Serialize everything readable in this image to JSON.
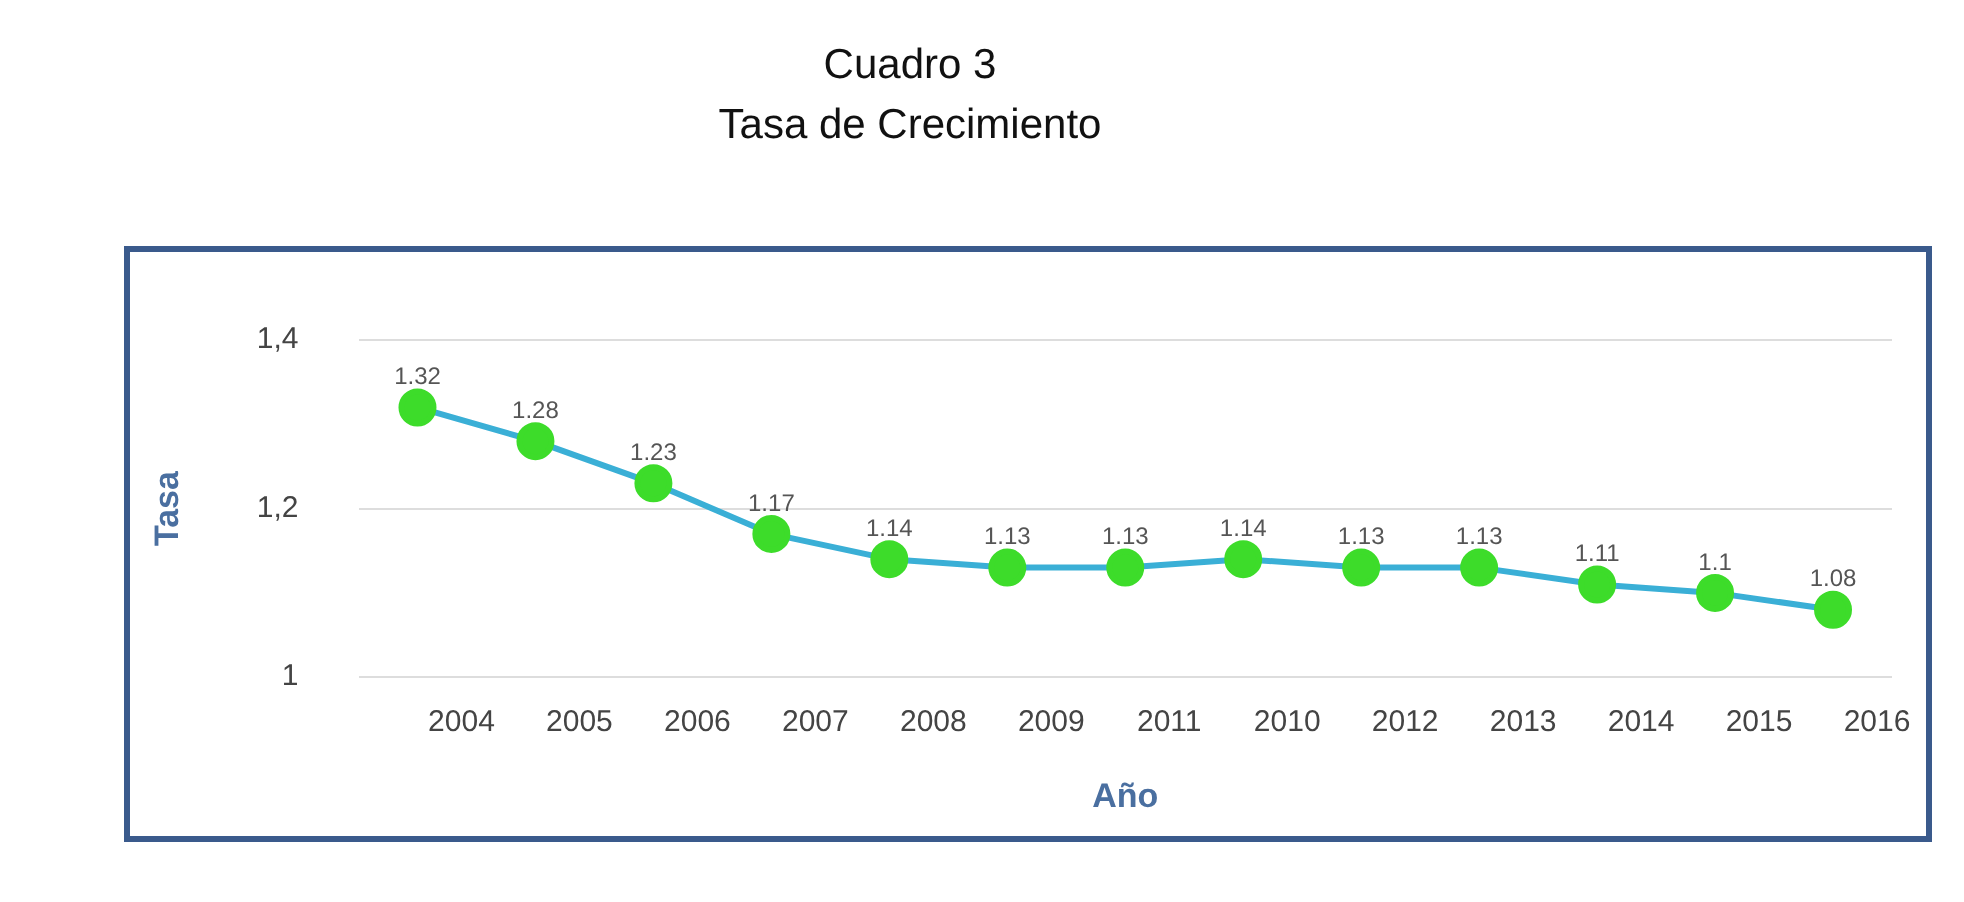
{
  "chart_data": {
    "type": "line",
    "title": "Cuadro 3",
    "subtitle": "Tasa de Crecimiento",
    "xlabel": "Año",
    "ylabel": "Tasa",
    "categories": [
      "2004",
      "2005",
      "2006",
      "2007",
      "2008",
      "2009",
      "2011",
      "2010",
      "2012",
      "2013",
      "2014",
      "2015",
      "2016"
    ],
    "series": [
      {
        "color": "#3aafd6",
        "values": [
          1.32,
          1.28,
          1.23,
          1.17,
          1.14,
          1.13,
          1.13,
          1.14,
          1.13,
          1.13,
          1.11,
          1.1,
          1.08
        ]
      }
    ],
    "ylim": [
      1,
      1.4
    ],
    "yticks": [
      {
        "value": 1,
        "label": "1"
      },
      {
        "value": 1.2,
        "label": "1,2"
      },
      {
        "value": 1.4,
        "label": "1,4"
      }
    ],
    "grid": "y",
    "legend": false,
    "marker": "circle",
    "line_style": "solid",
    "data_labels": true
  }
}
